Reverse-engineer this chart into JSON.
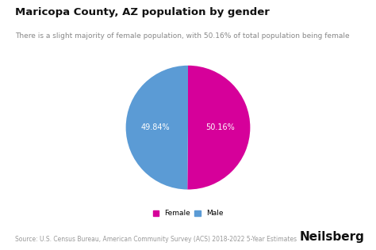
{
  "title": "Maricopa County, AZ population by gender",
  "subtitle": "There is a slight majority of female population, with 50.16% of total population being female",
  "labels": [
    "Female",
    "Male"
  ],
  "values": [
    50.16,
    49.84
  ],
  "colors": [
    "#d6009a",
    "#5b9bd5"
  ],
  "pct_labels": [
    "50.16%",
    "49.84%"
  ],
  "legend_labels": [
    "Female",
    "Male"
  ],
  "source_text": "Source: U.S. Census Bureau, American Community Survey (ACS) 2018-2022 5-Year Estimates",
  "brand_text": "Neilsberg",
  "background_color": "#ffffff",
  "text_color": "#111111",
  "subtitle_color": "#888888",
  "source_color": "#999999",
  "pct_text_color": "#ffffff",
  "title_fontsize": 9.5,
  "subtitle_fontsize": 6.5,
  "source_fontsize": 5.5,
  "brand_fontsize": 11,
  "pct_fontsize": 7
}
